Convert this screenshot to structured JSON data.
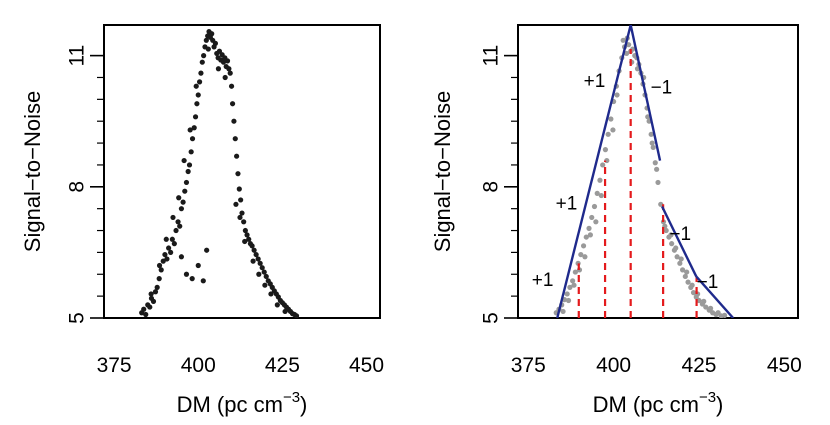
{
  "chart_data": [
    {
      "type": "scatter",
      "title": "",
      "xlabel": "DM  (pc cm",
      "xlabel_sup": "−3",
      "xlabel_close": ")",
      "ylabel": "Signal−to−Noise",
      "xlim": [
        372,
        454
      ],
      "ylim": [
        5,
        11.7
      ],
      "xticks": [
        {
          "value": 375,
          "label": "375"
        },
        {
          "value": 400,
          "label": "400"
        },
        {
          "value": 425,
          "label": "425"
        },
        {
          "value": 450,
          "label": "450"
        }
      ],
      "yticks": [
        {
          "value": 5,
          "label": "5"
        },
        {
          "value": 8,
          "label": "8"
        },
        {
          "value": 11,
          "label": "11"
        }
      ],
      "minor_yticks": [
        5.5,
        6,
        6.5,
        7,
        7.5,
        8.5,
        9,
        9.5,
        10,
        10.5
      ],
      "grid": false,
      "point_color": "#1a1a1a",
      "series": [
        {
          "points": [
            [
              383.2,
              5.12
            ],
            [
              383.8,
              5.2
            ],
            [
              384.4,
              5.08
            ],
            [
              385.0,
              5.3
            ],
            [
              385.6,
              5.25
            ],
            [
              386.1,
              5.45
            ],
            [
              386.7,
              5.38
            ],
            [
              387.3,
              5.6
            ],
            [
              387.8,
              5.7
            ],
            [
              388.4,
              5.9
            ],
            [
              389.0,
              6.1
            ],
            [
              389.6,
              6.3
            ],
            [
              390.1,
              6.45
            ],
            [
              390.7,
              6.35
            ],
            [
              391.2,
              6.6
            ],
            [
              391.8,
              6.5
            ],
            [
              392.3,
              6.8
            ],
            [
              392.9,
              6.7
            ],
            [
              393.4,
              7.0
            ],
            [
              394.0,
              7.2
            ],
            [
              394.5,
              7.1
            ],
            [
              395.0,
              7.5
            ],
            [
              395.5,
              7.65
            ],
            [
              396.0,
              7.9
            ],
            [
              396.5,
              8.1
            ],
            [
              397.0,
              8.35
            ],
            [
              397.4,
              8.5
            ],
            [
              397.9,
              8.8
            ],
            [
              398.3,
              9.1
            ],
            [
              398.8,
              9.35
            ],
            [
              399.2,
              9.6
            ],
            [
              399.6,
              9.9
            ],
            [
              400.0,
              10.1
            ],
            [
              400.4,
              10.4
            ],
            [
              400.8,
              10.6
            ],
            [
              401.2,
              10.85
            ],
            [
              401.6,
              11.0
            ],
            [
              402.0,
              11.2
            ],
            [
              402.4,
              11.35
            ],
            [
              402.8,
              11.45
            ],
            [
              403.2,
              11.55
            ],
            [
              403.6,
              11.42
            ],
            [
              404.0,
              11.5
            ],
            [
              404.3,
              11.35
            ],
            [
              404.7,
              11.2
            ],
            [
              405.1,
              11.28
            ],
            [
              405.5,
              11.05
            ],
            [
              405.9,
              10.95
            ],
            [
              406.3,
              11.1
            ],
            [
              406.7,
              10.9
            ],
            [
              407.1,
              11.02
            ],
            [
              407.5,
              10.85
            ],
            [
              407.9,
              10.95
            ],
            [
              408.3,
              10.75
            ],
            [
              408.7,
              10.88
            ],
            [
              409.1,
              10.7
            ],
            [
              409.5,
              10.6
            ],
            [
              409.9,
              10.3
            ],
            [
              410.2,
              9.9
            ],
            [
              410.6,
              9.5
            ],
            [
              411.0,
              9.1
            ],
            [
              411.4,
              8.7
            ],
            [
              411.8,
              8.3
            ],
            [
              412.2,
              7.95
            ],
            [
              412.6,
              7.7
            ],
            [
              413.0,
              7.4
            ],
            [
              413.5,
              7.2
            ],
            [
              414.0,
              7.0
            ],
            [
              414.5,
              6.9
            ],
            [
              415.0,
              6.8
            ],
            [
              415.5,
              6.7
            ],
            [
              416.0,
              6.65
            ],
            [
              416.6,
              6.55
            ],
            [
              417.2,
              6.45
            ],
            [
              417.8,
              6.35
            ],
            [
              418.4,
              6.25
            ],
            [
              419.0,
              6.15
            ],
            [
              419.6,
              6.05
            ],
            [
              420.2,
              5.95
            ],
            [
              420.8,
              5.85
            ],
            [
              421.4,
              5.78
            ],
            [
              422.0,
              5.7
            ],
            [
              422.6,
              5.62
            ],
            [
              423.2,
              5.55
            ],
            [
              423.8,
              5.48
            ],
            [
              424.4,
              5.4
            ],
            [
              425.0,
              5.35
            ],
            [
              425.6,
              5.3
            ],
            [
              426.2,
              5.25
            ],
            [
              426.8,
              5.2
            ],
            [
              427.4,
              5.15
            ],
            [
              428.0,
              5.1
            ],
            [
              428.6,
              5.08
            ],
            [
              429.2,
              5.05
            ],
            [
              395.0,
              6.4
            ],
            [
              396.5,
              6.0
            ],
            [
              398.2,
              5.9
            ],
            [
              400.0,
              6.2
            ],
            [
              401.5,
              5.85
            ],
            [
              402.5,
              6.55
            ],
            [
              386.0,
              5.55
            ],
            [
              388.5,
              6.2
            ],
            [
              390.5,
              6.8
            ],
            [
              392.5,
              7.3
            ],
            [
              394.2,
              7.75
            ],
            [
              395.8,
              8.6
            ],
            [
              397.6,
              9.3
            ],
            [
              399.4,
              10.3
            ],
            [
              403.0,
              11.15
            ],
            [
              406.0,
              10.7
            ],
            [
              408.0,
              10.5
            ],
            [
              411.2,
              7.6
            ],
            [
              412.4,
              7.3
            ],
            [
              413.8,
              6.75
            ],
            [
              416.3,
              6.3
            ],
            [
              418.0,
              6.0
            ],
            [
              419.8,
              5.75
            ],
            [
              421.6,
              5.55
            ],
            [
              423.5,
              5.3
            ],
            [
              425.8,
              5.15
            ]
          ]
        }
      ],
      "annotations": []
    },
    {
      "type": "scatter",
      "title": "",
      "xlabel": "DM  (pc cm",
      "xlabel_sup": "−3",
      "xlabel_close": ")",
      "ylabel": "Signal−to−Noise",
      "xlim": [
        372,
        454
      ],
      "ylim": [
        5,
        11.7
      ],
      "xticks": [
        {
          "value": 375,
          "label": "375"
        },
        {
          "value": 400,
          "label": "400"
        },
        {
          "value": 425,
          "label": "425"
        },
        {
          "value": 450,
          "label": "450"
        }
      ],
      "yticks": [
        {
          "value": 5,
          "label": "5"
        },
        {
          "value": 8,
          "label": "8"
        },
        {
          "value": 11,
          "label": "11"
        }
      ],
      "minor_yticks": [
        5.5,
        6,
        6.5,
        7,
        7.5,
        8.5,
        9,
        9.5,
        10,
        10.5
      ],
      "grid": false,
      "point_color": "#9a9a9a",
      "line_color": "#1f2a8c",
      "vline_color": "#e41a1c",
      "series": [
        {
          "points": [
            [
              383.2,
              5.12
            ],
            [
              384.0,
              5.2
            ],
            [
              384.8,
              5.3
            ],
            [
              385.6,
              5.42
            ],
            [
              386.4,
              5.55
            ],
            [
              387.2,
              5.7
            ],
            [
              388.0,
              5.85
            ],
            [
              388.8,
              6.05
            ],
            [
              389.6,
              6.25
            ],
            [
              390.4,
              6.45
            ],
            [
              391.2,
              6.65
            ],
            [
              392.0,
              6.85
            ],
            [
              392.8,
              7.05
            ],
            [
              393.6,
              7.3
            ],
            [
              394.4,
              7.55
            ],
            [
              395.2,
              7.85
            ],
            [
              396.0,
              8.15
            ],
            [
              396.8,
              8.5
            ],
            [
              397.6,
              8.85
            ],
            [
              398.4,
              9.2
            ],
            [
              399.2,
              9.55
            ],
            [
              400.0,
              9.95
            ],
            [
              400.8,
              10.3
            ],
            [
              401.6,
              10.65
            ],
            [
              402.4,
              10.95
            ],
            [
              403.2,
              11.2
            ],
            [
              403.8,
              11.05
            ],
            [
              404.4,
              11.25
            ],
            [
              405.0,
              11.1
            ],
            [
              405.6,
              11.15
            ],
            [
              406.2,
              11.0
            ],
            [
              406.8,
              10.95
            ],
            [
              407.4,
              10.8
            ],
            [
              408.0,
              10.6
            ],
            [
              408.6,
              10.35
            ],
            [
              409.2,
              10.1
            ],
            [
              409.8,
              9.8
            ],
            [
              410.4,
              9.5
            ],
            [
              411.0,
              9.2
            ],
            [
              411.6,
              8.9
            ],
            [
              412.2,
              8.55
            ],
            [
              413.0,
              8.1
            ],
            [
              413.8,
              7.6
            ],
            [
              414.6,
              7.2
            ],
            [
              415.4,
              7.0
            ],
            [
              416.2,
              6.85
            ],
            [
              417.0,
              6.7
            ],
            [
              417.8,
              6.55
            ],
            [
              418.6,
              6.4
            ],
            [
              419.4,
              6.25
            ],
            [
              420.2,
              6.1
            ],
            [
              421.0,
              5.95
            ],
            [
              421.8,
              5.82
            ],
            [
              422.6,
              5.7
            ],
            [
              423.4,
              5.58
            ],
            [
              424.2,
              5.48
            ],
            [
              425.0,
              5.4
            ],
            [
              426.0,
              5.32
            ],
            [
              427.0,
              5.25
            ],
            [
              428.0,
              5.18
            ],
            [
              429.0,
              5.12
            ],
            [
              430.0,
              5.08
            ],
            [
              431.5,
              5.05
            ],
            [
              402.8,
              11.35
            ],
            [
              404.0,
              11.4
            ],
            [
              405.3,
              10.85
            ],
            [
              401.0,
              10.1
            ],
            [
              399.8,
              9.3
            ],
            [
              398.0,
              8.6
            ],
            [
              396.4,
              7.8
            ],
            [
              394.8,
              7.2
            ],
            [
              393.2,
              6.9
            ],
            [
              391.6,
              6.4
            ],
            [
              390.0,
              6.1
            ],
            [
              388.4,
              5.75
            ],
            [
              386.8,
              5.4
            ],
            [
              385.2,
              5.15
            ],
            [
              407.0,
              10.7
            ],
            [
              408.8,
              10.5
            ],
            [
              410.0,
              9.6
            ],
            [
              411.3,
              9.0
            ],
            [
              412.6,
              8.4
            ],
            [
              415.0,
              7.1
            ],
            [
              416.8,
              6.9
            ],
            [
              418.2,
              6.6
            ],
            [
              419.8,
              6.35
            ],
            [
              421.4,
              6.05
            ],
            [
              423.0,
              5.75
            ],
            [
              424.6,
              5.55
            ],
            [
              426.4,
              5.38
            ],
            [
              428.4,
              5.22
            ],
            [
              430.6,
              5.12
            ],
            [
              432.5,
              5.06
            ]
          ]
        }
      ],
      "fit_lines": [
        [
          [
            383.5,
            5.0
          ],
          [
            405.0,
            11.7
          ]
        ],
        [
          [
            405.0,
            11.7
          ],
          [
            413.6,
            8.6
          ]
        ],
        [
          [
            414.2,
            7.55
          ],
          [
            424.2,
            5.95
          ]
        ],
        [
          [
            424.2,
            5.95
          ],
          [
            435.0,
            5.0
          ]
        ]
      ],
      "vlines": [
        {
          "x": 389.8,
          "y": 5.0,
          "top": 6.25
        },
        {
          "x": 397.5,
          "y": 5.0,
          "top": 8.6
        },
        {
          "x": 405.0,
          "y": 5.0,
          "top": 11.15
        },
        {
          "x": 414.5,
          "y": 5.0,
          "top": 7.6
        },
        {
          "x": 424.3,
          "y": 5.0,
          "top": 5.95
        }
      ],
      "annotations": [
        {
          "text": "+1",
          "x": 379.2,
          "y": 5.85
        },
        {
          "text": "+1",
          "x": 386.2,
          "y": 7.6
        },
        {
          "text": "+1",
          "x": 394.4,
          "y": 10.4
        },
        {
          "text": "−1",
          "x": 414.0,
          "y": 10.25
        },
        {
          "text": "−1",
          "x": 419.5,
          "y": 6.9
        },
        {
          "text": "−1",
          "x": 427.5,
          "y": 5.8
        }
      ]
    }
  ]
}
